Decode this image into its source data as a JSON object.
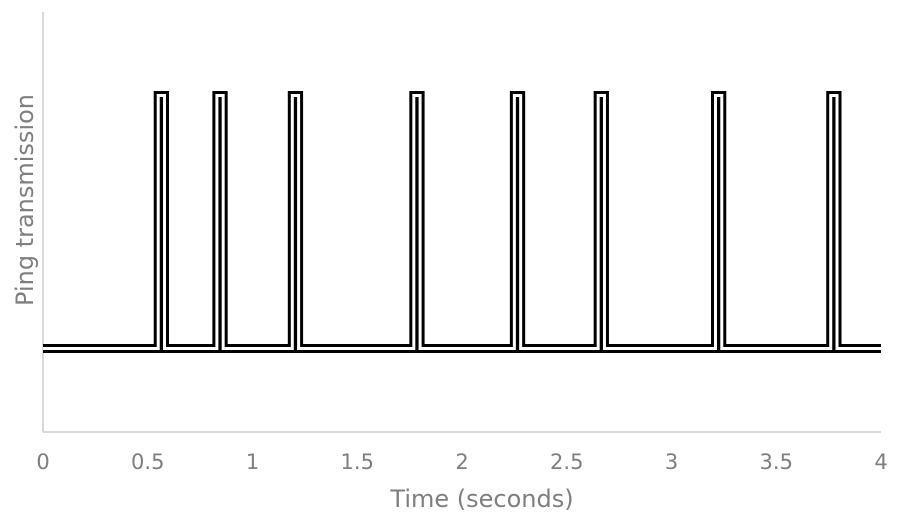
{
  "chart_data": {
    "type": "line",
    "title": "",
    "xlabel": "Time (seconds)",
    "ylabel": "Ping transmission",
    "xlim": [
      0,
      4
    ],
    "ylim": [
      -0.33,
      1.33
    ],
    "x_ticks": [
      0,
      0.5,
      1,
      1.5,
      2,
      2.5,
      3,
      3.5,
      4
    ],
    "x_tick_labels": [
      "0",
      "0.5",
      "1",
      "1.5",
      "2",
      "2.5",
      "3",
      "3.5",
      "4"
    ],
    "grid": false,
    "legend": "none",
    "series": [
      {
        "color": "#000000",
        "baseline": 0,
        "pulse_level": 1,
        "pulse_width": 0.03,
        "pulse_starts": [
          0.55,
          0.83,
          1.19,
          1.77,
          2.25,
          2.65,
          3.21,
          3.76
        ]
      }
    ]
  }
}
